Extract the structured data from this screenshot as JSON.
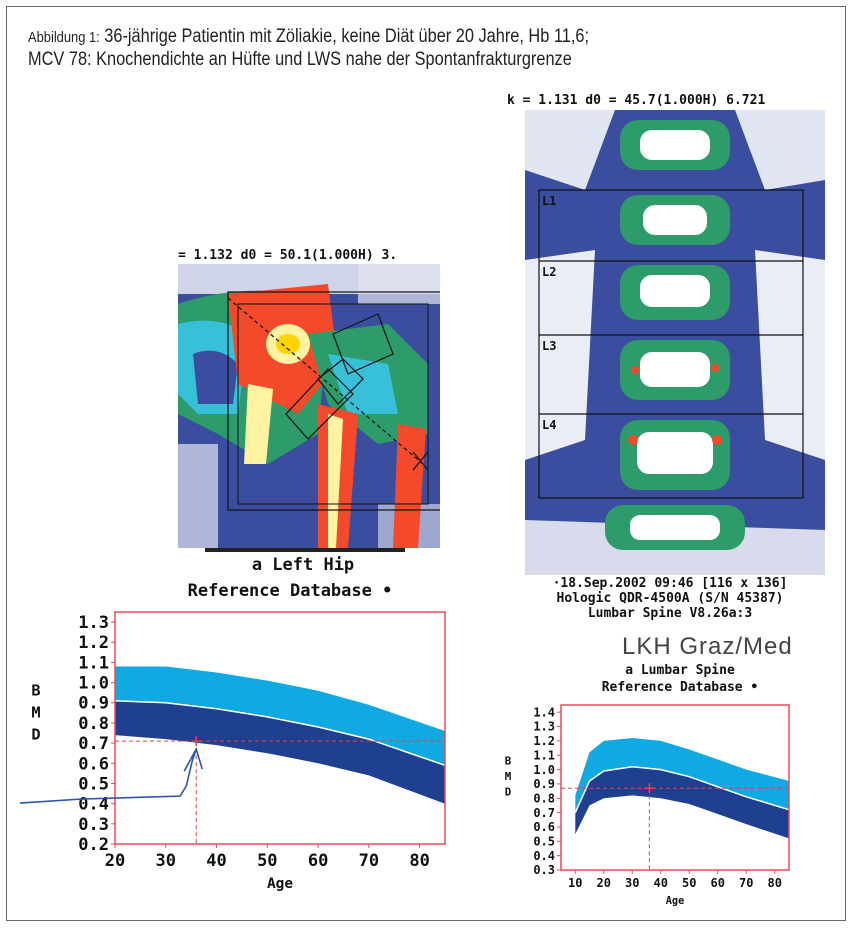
{
  "caption": {
    "label": "Abbildung 1:",
    "line1": "36-jährige Patientin mit Zöliakie, keine Diät über 20 Jahre, Hb 11,6;",
    "line2": "MCV 78: Knochendichte an Hüfte und LWS nahe der Spontanfrakturgrenze"
  },
  "hip_scan": {
    "header": "= 1.132  d0 =  50.1(1.000H)  3.",
    "title": "a Left Hip",
    "colors": {
      "background": "#3b4d9e",
      "bone_high": "#f24a2a",
      "bone_mid": "#2d9b6a",
      "bone_bright": "#fff2a0"
    }
  },
  "spine_scan": {
    "header": "k = 1.131  d0 =  45.7(1.000H)  6.721",
    "vertebrae": [
      "L1",
      "L2",
      "L3",
      "L4"
    ],
    "footer": [
      "·18.Sep.2002 09:46  [116 x 136]",
      "Hologic QDR-4500A (S/N 45387)",
      "Lumbar Spine V8.26a:3"
    ]
  },
  "clinic": "LKH Graz/Med",
  "chart_data": [
    {
      "type": "area",
      "title": "Reference Database •",
      "site": "a Left Hip",
      "xlabel": "Age",
      "ylabel": "BMD",
      "ylabel_letters": [
        "B",
        "M",
        "D"
      ],
      "xlim": [
        20,
        85
      ],
      "ylim": [
        0.2,
        1.35
      ],
      "x_ticks": [
        "20",
        "30",
        "40",
        "50",
        "60",
        "70",
        "80"
      ],
      "y_ticks": [
        "0.2",
        "0.3",
        "0.4",
        "0.5",
        "0.6",
        "0.7",
        "0.8",
        "0.9",
        "1.0",
        "1.1",
        "1.2",
        "1.3"
      ],
      "x": [
        20,
        30,
        40,
        50,
        60,
        70,
        85
      ],
      "upper": [
        1.08,
        1.08,
        1.05,
        1.01,
        0.96,
        0.89,
        0.76
      ],
      "mean": [
        0.91,
        0.9,
        0.87,
        0.83,
        0.78,
        0.72,
        0.59
      ],
      "lower": [
        0.74,
        0.72,
        0.69,
        0.65,
        0.6,
        0.54,
        0.4
      ],
      "patient": {
        "age": 36,
        "bmd": 0.71
      },
      "colors": {
        "upper_band": "#11a9e2",
        "lower_band": "#1f3f91",
        "mean_line": "#ffffff",
        "marker": "#e84040",
        "frame": "#e84a5a"
      }
    },
    {
      "type": "area",
      "title": "Reference Database •",
      "site": "a Lumbar Spine",
      "xlabel": "Age",
      "ylabel": "BMD",
      "ylabel_letters": [
        "B",
        "M",
        "D"
      ],
      "xlim": [
        5,
        85
      ],
      "ylim": [
        0.3,
        1.45
      ],
      "x_ticks": [
        "10",
        "20",
        "30",
        "40",
        "50",
        "60",
        "70",
        "80"
      ],
      "y_ticks": [
        "0.3",
        "0.4",
        "0.5",
        "0.6",
        "0.7",
        "0.8",
        "0.9",
        "1.0",
        "1.1",
        "1.2",
        "1.3",
        "1.4"
      ],
      "x": [
        10,
        15,
        20,
        30,
        40,
        50,
        60,
        70,
        85
      ],
      "upper": [
        0.82,
        1.12,
        1.2,
        1.22,
        1.2,
        1.14,
        1.07,
        1.0,
        0.92
      ],
      "mean": [
        0.7,
        0.92,
        0.99,
        1.02,
        1.0,
        0.95,
        0.88,
        0.81,
        0.72
      ],
      "lower": [
        0.55,
        0.75,
        0.8,
        0.82,
        0.8,
        0.76,
        0.69,
        0.62,
        0.52
      ],
      "patient": {
        "age": 36,
        "bmd": 0.87
      },
      "colors": {
        "upper_band": "#11a9e2",
        "lower_band": "#1f3f91",
        "mean_line": "#ffffff",
        "marker": "#e84040",
        "frame": "#e84a5a"
      }
    }
  ]
}
